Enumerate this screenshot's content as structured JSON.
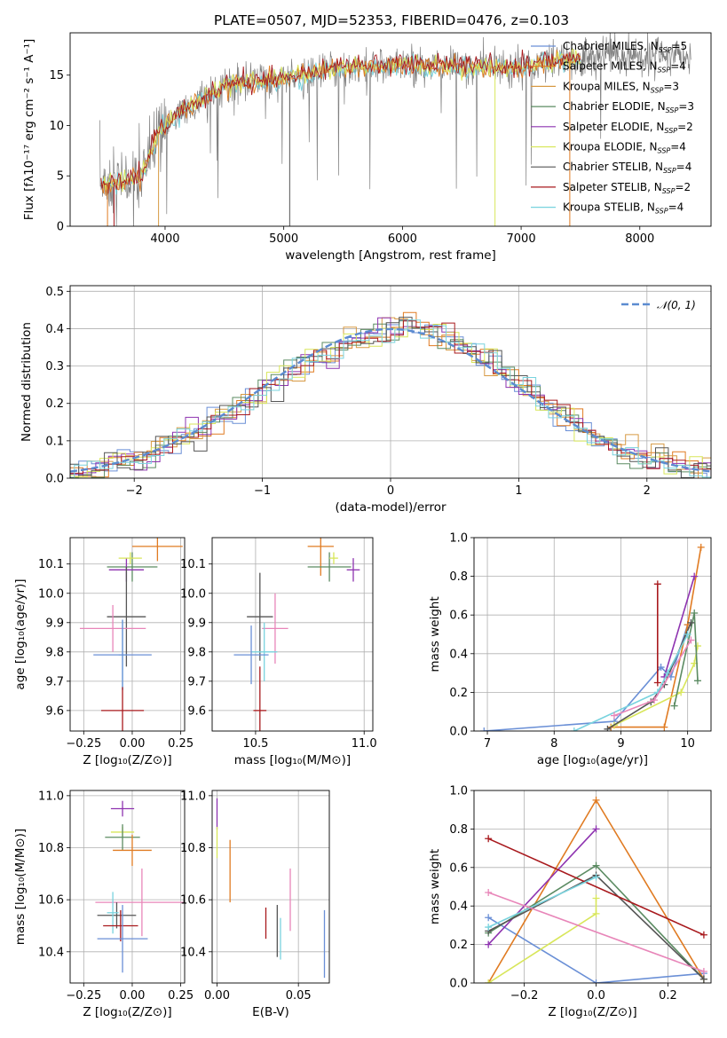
{
  "title": "PLATE=0507, MJD=52353, FIBERID=0476, z=0.103",
  "colors": {
    "chabrier_miles": "#6a8fd6",
    "salpeter_miles": "#e07b22",
    "kroupa_miles": "#d79a44",
    "chabrier_elodie": "#5b8b62",
    "salpeter_elodie": "#8e33b0",
    "kroupa_elodie": "#d8e65a",
    "chabrier_stelib": "#555555",
    "salpeter_stelib": "#a8191d",
    "kroupa_stelib": "#78d3de",
    "pink": "#e886b9",
    "data": "#808080"
  },
  "legend_entries": [
    {
      "text": "Chabrier MILES, N",
      "sub": "SSP",
      "tail": "=5",
      "color": "#6a8fd6"
    },
    {
      "text": "Salpeter MILES, N",
      "sub": "SSP",
      "tail": "=4",
      "color": "#e07b22"
    },
    {
      "text": "Kroupa MILES, N",
      "sub": "SSP",
      "tail": "=3",
      "color": "#d79a44"
    },
    {
      "text": "Chabrier ELODIE, N",
      "sub": "SSP",
      "tail": "=3",
      "color": "#5b8b62"
    },
    {
      "text": "Salpeter ELODIE, N",
      "sub": "SSP",
      "tail": "=2",
      "color": "#8e33b0"
    },
    {
      "text": "Kroupa ELODIE, N",
      "sub": "SSP",
      "tail": "=4",
      "color": "#d8e65a"
    },
    {
      "text": "Chabrier STELIB, N",
      "sub": "SSP",
      "tail": "=4",
      "color": "#555555"
    },
    {
      "text": "Salpeter STELIB, N",
      "sub": "SSP",
      "tail": "=2",
      "color": "#a8191d"
    },
    {
      "text": "Kroupa STELIB, N",
      "sub": "SSP",
      "tail": "=4",
      "color": "#78d3de"
    }
  ],
  "chart_data": [
    {
      "type": "line",
      "name": "spectrum",
      "xlabel": "wavelength [Angstrom, rest frame]",
      "ylabel": "Flux [fλ10⁻¹⁷ erg cm⁻² s⁻¹ A⁻¹]",
      "xlim": [
        3200,
        8600
      ],
      "ylim": [
        0,
        19.2
      ],
      "xticks": [
        4000,
        5000,
        6000,
        7000,
        8000
      ],
      "yticks": [
        0,
        5,
        10,
        15
      ],
      "envelope": {
        "x": [
          3450,
          3600,
          3800,
          3950,
          4100,
          4300,
          4500,
          4700,
          5000,
          5300,
          5600,
          5900,
          6200,
          6500,
          6800,
          7000,
          7200,
          7500,
          7800,
          8100,
          8400
        ],
        "y": [
          4.3,
          4.3,
          5.0,
          9.4,
          11.2,
          12.3,
          14.0,
          14.3,
          14.7,
          15.4,
          15.9,
          16.0,
          15.9,
          15.9,
          15.8,
          15.7,
          16.2,
          16.8,
          16.9,
          16.9,
          16.8
        ]
      },
      "grid": false
    },
    {
      "type": "histogram",
      "name": "residuals",
      "xlabel": "(data-model)/error",
      "ylabel": "Normed distribution",
      "xlim": [
        -2.5,
        2.5
      ],
      "ylim": [
        0,
        0.515
      ],
      "xticks": [
        -2,
        -1,
        0,
        1,
        2
      ],
      "yticks": [
        0.0,
        0.1,
        0.2,
        0.3,
        0.4,
        0.5
      ],
      "bin_width": 0.1,
      "reference": {
        "name": "𝒩(0, 1)",
        "mean": 0,
        "sigma": 1
      },
      "grid": true,
      "legend": "top-right"
    },
    {
      "type": "scatter",
      "name": "age-vs-Z",
      "xlabel": "Z [log₁₀(Z/Z⊙)]",
      "ylabel": "age  [log₁₀(age/yr)]",
      "xlim": [
        -0.32,
        0.27
      ],
      "ylim": [
        9.53,
        10.19
      ],
      "xticks": [
        -0.25,
        0.0,
        0.25
      ],
      "yticks": [
        9.6,
        9.7,
        9.8,
        9.9,
        10.0,
        10.1
      ],
      "points": [
        {
          "series": "Salpeter MILES",
          "x": 0.13,
          "y": 10.16,
          "xerr": 0.13,
          "yerr": 0.05
        },
        {
          "series": "Chabrier ELODIE",
          "x": 0.0,
          "y": 10.09,
          "xerr": 0.13,
          "yerr": 0.05
        },
        {
          "series": "Salpeter ELODIE",
          "x": -0.03,
          "y": 10.08,
          "xerr": 0.09,
          "yerr": 0.04
        },
        {
          "series": "Kroupa ELODIE",
          "x": -0.01,
          "y": 10.12,
          "xerr": 0.06,
          "yerr": 0.02
        },
        {
          "series": "Chabrier STELIB",
          "x": -0.03,
          "y": 9.92,
          "xerr": 0.1,
          "yerr": 0.17
        },
        {
          "series": "pink",
          "x": -0.1,
          "y": 9.88,
          "xerr": 0.17,
          "yerr": 0.08
        },
        {
          "series": "Kroupa STELIB",
          "x": -0.05,
          "y": 9.79,
          "xerr": 0.02,
          "yerr": 0.12
        },
        {
          "series": "Chabrier MILES",
          "x": -0.05,
          "y": 9.79,
          "xerr": 0.15,
          "yerr": 0.12
        },
        {
          "series": "Salpeter STELIB",
          "x": -0.05,
          "y": 9.6,
          "xerr": 0.11,
          "yerr": 0.08
        }
      ],
      "grid": true
    },
    {
      "type": "scatter",
      "name": "age-vs-mass",
      "xlabel": "mass [log₁₀(M/M⊙)]",
      "ylabel": "",
      "xlim": [
        10.3,
        11.04
      ],
      "ylim": [
        9.53,
        10.19
      ],
      "xticks": [
        10.5,
        11.0
      ],
      "yticks": [
        9.6,
        9.7,
        9.8,
        9.9,
        10.0,
        10.1
      ],
      "points": [
        {
          "series": "Salpeter MILES",
          "x": 10.8,
          "y": 10.16,
          "xerr": 0.06,
          "yerr": 0.1
        },
        {
          "series": "Chabrier ELODIE",
          "x": 10.84,
          "y": 10.09,
          "xerr": 0.1,
          "yerr": 0.05
        },
        {
          "series": "Salpeter ELODIE",
          "x": 10.95,
          "y": 10.08,
          "xerr": 0.03,
          "yerr": 0.04
        },
        {
          "series": "Kroupa ELODIE",
          "x": 10.86,
          "y": 10.12,
          "xerr": 0.02,
          "yerr": 0.02
        },
        {
          "series": "Chabrier STELIB",
          "x": 10.52,
          "y": 9.92,
          "xerr": 0.06,
          "yerr": 0.15
        },
        {
          "series": "pink",
          "x": 10.59,
          "y": 9.88,
          "xerr": 0.06,
          "yerr": 0.12
        },
        {
          "series": "Kroupa STELIB",
          "x": 10.54,
          "y": 9.8,
          "xerr": 0.06,
          "yerr": 0.1
        },
        {
          "series": "Chabrier MILES",
          "x": 10.48,
          "y": 9.79,
          "xerr": 0.08,
          "yerr": 0.1
        },
        {
          "series": "Salpeter STELIB",
          "x": 10.52,
          "y": 9.6,
          "xerr": 0.03,
          "yerr": 0.15
        }
      ],
      "grid": true
    },
    {
      "type": "line",
      "name": "massweight-vs-age",
      "xlabel": "age  [log₁₀(age/yr)]",
      "ylabel": "mass weight",
      "xlim": [
        6.8,
        10.35
      ],
      "ylim": [
        0,
        1.0
      ],
      "xticks": [
        7,
        8,
        9,
        10
      ],
      "yticks": [
        0.0,
        0.2,
        0.4,
        0.6,
        0.8,
        1.0
      ],
      "series": [
        {
          "name": "Chabrier MILES",
          "x": [
            6.95,
            8.9,
            9.6,
            9.75,
            10.0
          ],
          "y": [
            0.0,
            0.05,
            0.33,
            0.28,
            0.55
          ]
        },
        {
          "name": "Salpeter MILES",
          "x": [
            8.85,
            9.65,
            10.0,
            10.2
          ],
          "y": [
            0.02,
            0.02,
            0.55,
            0.95
          ]
        },
        {
          "name": "Salpeter ELODIE",
          "x": [
            9.65,
            10.1
          ],
          "y": [
            0.28,
            0.8
          ]
        },
        {
          "name": "Kroupa ELODIE",
          "x": [
            8.9,
            9.9,
            10.1,
            10.15
          ],
          "y": [
            0.03,
            0.2,
            0.35,
            0.44
          ]
        },
        {
          "name": "Chabrier ELODIE",
          "x": [
            9.8,
            10.1,
            10.15
          ],
          "y": [
            0.13,
            0.61,
            0.26
          ]
        },
        {
          "name": "Chabrier STELIB",
          "x": [
            8.8,
            9.45,
            9.65,
            10.05
          ],
          "y": [
            0.01,
            0.15,
            0.24,
            0.56
          ]
        },
        {
          "name": "Salpeter STELIB",
          "x": [
            9.55,
            9.55
          ],
          "y": [
            0.25,
            0.76
          ]
        },
        {
          "name": "Kroupa STELIB",
          "x": [
            8.3,
            9.55,
            9.7,
            10.0
          ],
          "y": [
            0.0,
            0.2,
            0.3,
            0.5
          ]
        },
        {
          "name": "pink",
          "x": [
            8.9,
            9.5,
            10.05
          ],
          "y": [
            0.08,
            0.16,
            0.47
          ]
        }
      ],
      "grid": true
    },
    {
      "type": "scatter",
      "name": "mass-vs-Z",
      "xlabel": "Z [log₁₀(Z/Z⊙)]",
      "ylabel": "mass [log₁₀(M/M⊙)]",
      "xlim": [
        -0.32,
        0.27
      ],
      "ylim": [
        10.28,
        11.02
      ],
      "xticks": [
        -0.25,
        0.0,
        0.25
      ],
      "yticks": [
        10.4,
        10.6,
        10.8,
        11.0
      ],
      "points": [
        {
          "series": "Salpeter ELODIE",
          "x": -0.05,
          "y": 10.95,
          "xerr": 0.06,
          "yerr": 0.03
        },
        {
          "series": "Kroupa ELODIE",
          "x": -0.05,
          "y": 10.86,
          "xerr": 0.06,
          "yerr": 0.02
        },
        {
          "series": "Chabrier ELODIE",
          "x": -0.05,
          "y": 10.84,
          "xerr": 0.09,
          "yerr": 0.05
        },
        {
          "series": "Salpeter MILES",
          "x": 0.0,
          "y": 10.79,
          "xerr": 0.1,
          "yerr": 0.06
        },
        {
          "series": "pink",
          "x": 0.05,
          "y": 10.59,
          "xerr": 0.24,
          "yerr": 0.13
        },
        {
          "series": "Chabrier STELIB",
          "x": -0.08,
          "y": 10.54,
          "xerr": 0.1,
          "yerr": 0.05
        },
        {
          "series": "Kroupa STELIB",
          "x": -0.1,
          "y": 10.55,
          "xerr": 0.03,
          "yerr": 0.08
        },
        {
          "series": "Salpeter STELIB",
          "x": -0.06,
          "y": 10.5,
          "xerr": 0.09,
          "yerr": 0.06
        },
        {
          "series": "Chabrier MILES",
          "x": -0.05,
          "y": 10.45,
          "xerr": 0.13,
          "yerr": 0.13
        }
      ],
      "grid": true
    },
    {
      "type": "scatter",
      "name": "mass-vs-EBV",
      "xlabel": "E(B-V)",
      "ylabel": "",
      "xlim": [
        -0.003,
        0.069
      ],
      "ylim": [
        10.28,
        11.02
      ],
      "xticks": [
        0.0,
        0.05
      ],
      "yticks": [
        10.4,
        10.6,
        10.8,
        11.0
      ],
      "points": [
        {
          "series": "Salpeter ELODIE",
          "x": 0.0,
          "y": 10.93,
          "xerr": 0,
          "yerr": 0.06
        },
        {
          "series": "Kroupa ELODIE",
          "x": 0.0,
          "y": 10.82,
          "xerr": 0,
          "yerr": 0.06
        },
        {
          "series": "Salpeter MILES",
          "x": 0.008,
          "y": 10.71,
          "xerr": 0,
          "yerr": 0.12
        },
        {
          "series": "Salpeter STELIB",
          "x": 0.03,
          "y": 10.51,
          "xerr": 0,
          "yerr": 0.06
        },
        {
          "series": "Chabrier STELIB",
          "x": 0.037,
          "y": 10.48,
          "xerr": 0,
          "yerr": 0.1
        },
        {
          "series": "Kroupa STELIB",
          "x": 0.039,
          "y": 10.45,
          "xerr": 0,
          "yerr": 0.08
        },
        {
          "series": "pink",
          "x": 0.045,
          "y": 10.6,
          "xerr": 0,
          "yerr": 0.12
        },
        {
          "series": "Chabrier MILES",
          "x": 0.066,
          "y": 10.43,
          "xerr": 0,
          "yerr": 0.13
        }
      ],
      "grid": true
    },
    {
      "type": "line",
      "name": "massweight-vs-Z",
      "xlabel": "Z [log₁₀(Z/Z⊙)]",
      "ylabel": "mass weight",
      "xlim": [
        -0.34,
        0.32
      ],
      "ylim": [
        0,
        1.0
      ],
      "xticks": [
        -0.2,
        0.0,
        0.2
      ],
      "yticks": [
        0.0,
        0.2,
        0.4,
        0.6,
        0.8,
        1.0
      ],
      "series": [
        {
          "name": "Chabrier MILES",
          "x": [
            -0.3,
            0.0,
            0.3
          ],
          "y": [
            0.34,
            0.0,
            0.05
          ]
        },
        {
          "name": "Salpeter MILES",
          "x": [
            -0.3,
            0.0,
            0.3
          ],
          "y": [
            0.0,
            0.95,
            0.02
          ]
        },
        {
          "name": "Salpeter ELODIE",
          "x": [
            -0.3,
            0.0
          ],
          "y": [
            0.2,
            0.8
          ]
        },
        {
          "name": "Kroupa ELODIE",
          "x": [
            -0.3,
            0.0,
            0.0
          ],
          "y": [
            0.0,
            0.36,
            0.44
          ]
        },
        {
          "name": "Chabrier ELODIE",
          "x": [
            -0.3,
            0.0,
            0.3
          ],
          "y": [
            0.26,
            0.61,
            0.02
          ]
        },
        {
          "name": "Chabrier STELIB",
          "x": [
            -0.3,
            0.0,
            0.3
          ],
          "y": [
            0.27,
            0.56,
            0.02
          ]
        },
        {
          "name": "Salpeter STELIB",
          "x": [
            -0.3,
            0.3
          ],
          "y": [
            0.75,
            0.25
          ]
        },
        {
          "name": "Kroupa STELIB",
          "x": [
            -0.3,
            0.0
          ],
          "y": [
            0.29,
            0.55
          ]
        },
        {
          "name": "pink",
          "x": [
            -0.3,
            0.3
          ],
          "y": [
            0.47,
            0.06
          ]
        }
      ],
      "grid": true
    }
  ]
}
